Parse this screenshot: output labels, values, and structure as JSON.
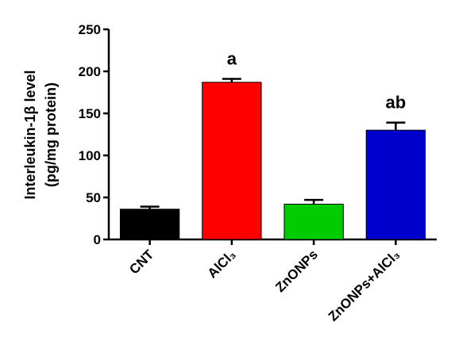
{
  "chart_data": {
    "type": "bar",
    "ylabel": [
      "Interleukin-1β level",
      "(pg/mg protein)"
    ],
    "categories": [
      "CNT",
      "AlCl₃",
      "ZnONPs",
      "ZnONPs+AlCl₃"
    ],
    "values": [
      36,
      187,
      42,
      130
    ],
    "errors": [
      3,
      4,
      5,
      9
    ],
    "colors": [
      "#000000",
      "#ff0000",
      "#00cc00",
      "#0000cc"
    ],
    "annotations": [
      {
        "category": "AlCl₃",
        "text": "a"
      },
      {
        "category": "ZnONPs+AlCl₃",
        "text": "ab"
      }
    ],
    "ylim": [
      0,
      250
    ],
    "yticks": [
      0,
      50,
      100,
      150,
      200,
      250
    ],
    "grid": false
  }
}
